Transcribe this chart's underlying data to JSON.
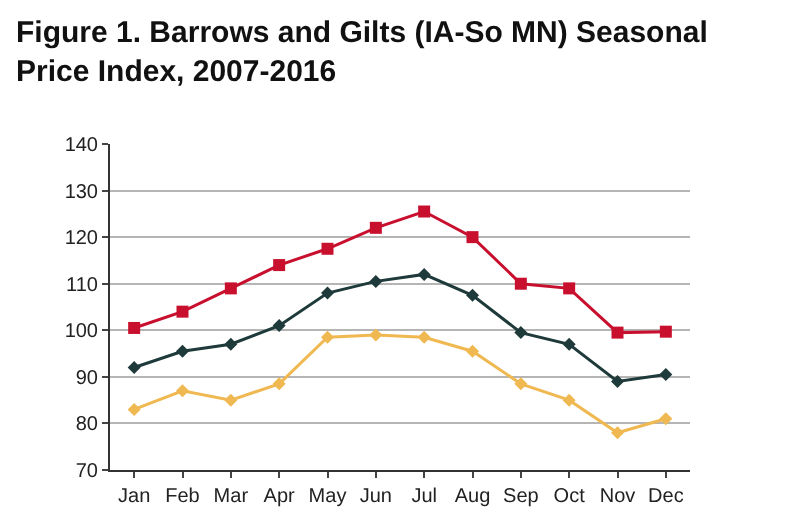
{
  "chart_data": {
    "type": "line",
    "title": "Figure 1. Barrows and Gilts (IA-So MN) Seasonal\nPrice Index, 2007-2016",
    "categories": [
      "Jan",
      "Feb",
      "Mar",
      "Apr",
      "May",
      "Jun",
      "Jul",
      "Aug",
      "Sep",
      "Oct",
      "Nov",
      "Dec"
    ],
    "series": [
      {
        "color": "#c8102e",
        "marker": "square",
        "values": [
          100.5,
          104,
          109,
          114,
          117.5,
          122,
          125.5,
          120,
          110,
          109,
          99.5,
          99.7
        ]
      },
      {
        "color": "#1f3a3a",
        "marker": "diamond",
        "values": [
          92,
          95.5,
          97,
          101,
          108,
          110.5,
          112,
          107.5,
          99.5,
          97,
          89,
          90.5
        ]
      },
      {
        "color": "#f0b850",
        "marker": "diamond",
        "values": [
          83,
          87,
          85,
          88.5,
          98.5,
          99,
          98.5,
          95.5,
          88.5,
          85,
          78,
          81
        ]
      }
    ],
    "ylim": [
      70,
      140
    ],
    "yticks": [
      70,
      80,
      90,
      100,
      110,
      120,
      130,
      140
    ],
    "grid": "y"
  }
}
